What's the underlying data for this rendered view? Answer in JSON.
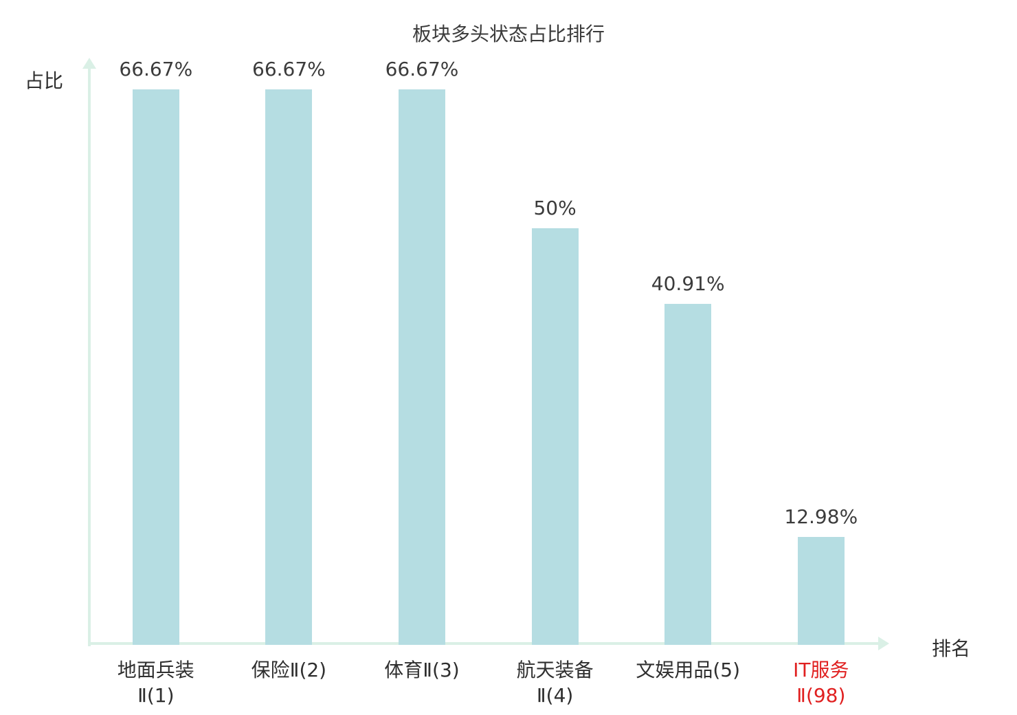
{
  "title": "板块多头状态占比排行",
  "colors": {
    "bar": "#b5dde2",
    "axis": "#daf0e6",
    "text": "#3b3b3b",
    "highlight": "#e02020"
  },
  "chart_data": {
    "type": "bar",
    "title": "板块多头状态占比排行",
    "xlabel": "排名",
    "ylabel": "占比",
    "categories": [
      "地面兵装Ⅱ(1)",
      "保险Ⅱ(2)",
      "体育Ⅱ(3)",
      "航天装备Ⅱ(4)",
      "文娱用品(5)",
      "IT服务Ⅱ(98)"
    ],
    "values": [
      66.67,
      66.67,
      66.67,
      50,
      40.91,
      12.98
    ],
    "value_labels": [
      "66.67%",
      "66.67%",
      "66.67%",
      "50%",
      "40.91%",
      "12.98%"
    ],
    "category_lines": [
      [
        "地面兵装",
        "Ⅱ(1)"
      ],
      [
        "保险Ⅱ(2)"
      ],
      [
        "体育Ⅱ(3)"
      ],
      [
        "航天装备",
        "Ⅱ(4)"
      ],
      [
        "文娱用品(5)"
      ],
      [
        "IT服务",
        "Ⅱ(98)"
      ]
    ],
    "highlight_index": 5,
    "ylim": [
      0,
      70
    ],
    "grid": false,
    "legend": "none"
  }
}
